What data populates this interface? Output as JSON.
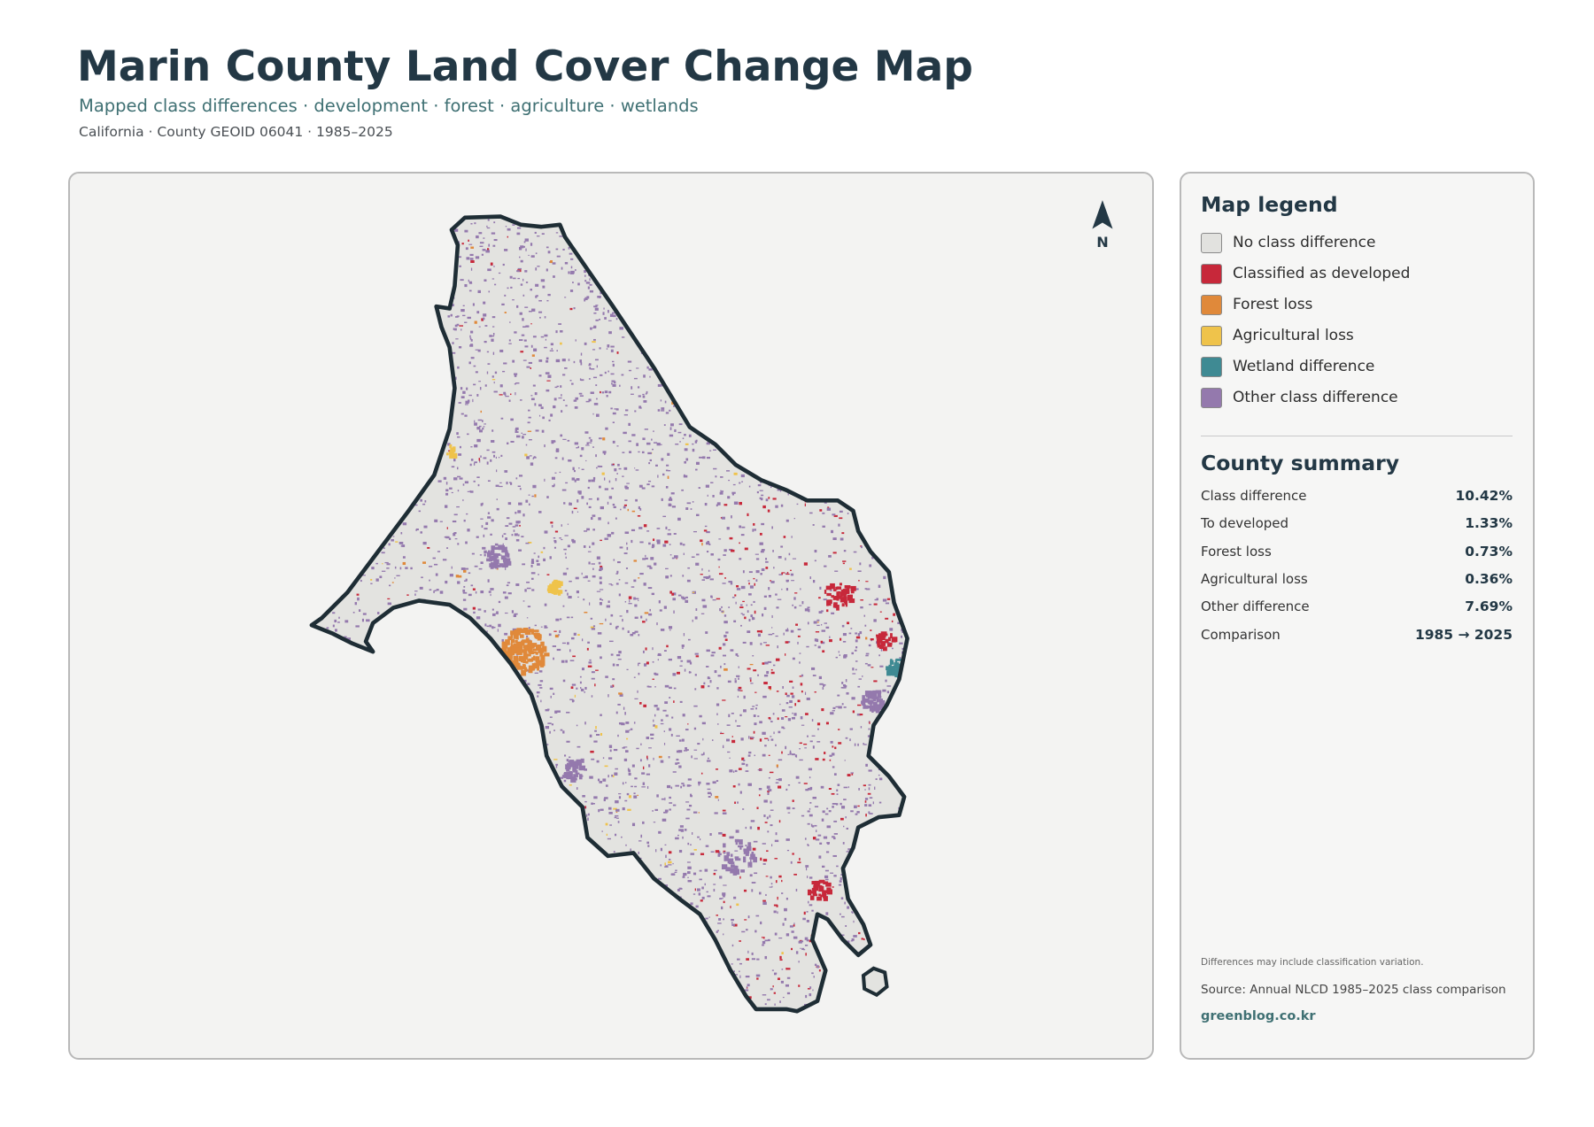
{
  "header": {
    "title": "Marin County Land Cover Change Map",
    "subtitle": "Mapped class differences · development · forest · agriculture · wetlands",
    "meta": "California · County GEOID 06041 · 1985–2025"
  },
  "map": {
    "north_label": "N"
  },
  "legend": {
    "title": "Map legend",
    "items": [
      {
        "label": "No class difference",
        "color": "#e2e2df"
      },
      {
        "label": "Classified as developed",
        "color": "#c7283a"
      },
      {
        "label": "Forest loss",
        "color": "#e0893a"
      },
      {
        "label": "Agricultural loss",
        "color": "#efc34b"
      },
      {
        "label": "Wetland difference",
        "color": "#3f8a93"
      },
      {
        "label": "Other class difference",
        "color": "#9479ad"
      }
    ]
  },
  "summary": {
    "title": "County summary",
    "rows": [
      [
        "Class difference",
        "10.42%"
      ],
      [
        "To developed",
        "1.33%"
      ],
      [
        "Forest loss",
        "0.73%"
      ],
      [
        "Agricultural loss",
        "0.36%"
      ],
      [
        "Other difference",
        "7.69%"
      ],
      [
        "Comparison",
        "1985 → 2025"
      ]
    ]
  },
  "footer": {
    "note": "Differences may include classification variation.",
    "source": "Source: Annual NLCD 1985–2025 class comparison",
    "credit": "greenblog.co.kr"
  }
}
